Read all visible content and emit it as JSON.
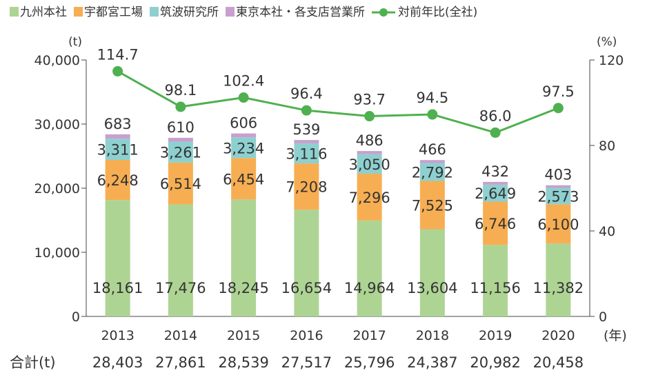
{
  "chart_data": {
    "type": "bar",
    "stacked": true,
    "title": "",
    "categories": [
      "2013",
      "2014",
      "2015",
      "2016",
      "2017",
      "2018",
      "2019",
      "2020"
    ],
    "x_unit": "(年)",
    "y_left_unit": "(t)",
    "y_right_unit": "(%)",
    "y_left_ticks": [
      "0",
      "10,000",
      "20,000",
      "30,000",
      "40,000"
    ],
    "y_right_ticks": [
      "0",
      "40",
      "80",
      "120"
    ],
    "ylim_left": [
      0,
      40000
    ],
    "ylim_right": [
      0,
      120
    ],
    "grid": false,
    "legend_position": "top",
    "series": [
      {
        "name": "九州本社",
        "color": "#aed494",
        "values": [
          18161,
          17476,
          18245,
          16654,
          14964,
          13604,
          11156,
          11382
        ],
        "labels": [
          "18,161",
          "17,476",
          "18,245",
          "16,654",
          "14,964",
          "13,604",
          "11,156",
          "11,382"
        ]
      },
      {
        "name": "宇都宮工場",
        "color": "#f7ae52",
        "values": [
          6248,
          6514,
          6454,
          7208,
          7296,
          7525,
          6746,
          6100
        ],
        "labels": [
          "6,248",
          "6,514",
          "6,454",
          "7,208",
          "7,296",
          "7,525",
          "6,746",
          "6,100"
        ]
      },
      {
        "name": "筑波研究所",
        "color": "#8ed0d0",
        "values": [
          3311,
          3261,
          3234,
          3116,
          3050,
          2792,
          2649,
          2573
        ],
        "labels": [
          "3,311",
          "3,261",
          "3,234",
          "3,116",
          "3,050",
          "2,792",
          "2,649",
          "2,573"
        ]
      },
      {
        "name": "東京本社・各支店営業所",
        "color": "#c8a0cd",
        "values": [
          683,
          610,
          606,
          539,
          486,
          466,
          432,
          403
        ],
        "labels": [
          "683",
          "610",
          "606",
          "539",
          "486",
          "466",
          "432",
          "403"
        ]
      }
    ],
    "line_series": {
      "name": "対前年比(全社)",
      "color": "#4fb04f",
      "axis": "right",
      "values": [
        114.7,
        98.1,
        102.4,
        96.4,
        93.7,
        94.5,
        86.0,
        97.5
      ],
      "labels": [
        "114.7",
        "98.1",
        "102.4",
        "96.4",
        "93.7",
        "94.5",
        "86.0",
        "97.5"
      ]
    },
    "totals_label": "合計(t)",
    "totals": [
      "28,403",
      "27,861",
      "28,539",
      "27,517",
      "25,796",
      "24,387",
      "20,982",
      "20,458"
    ]
  }
}
